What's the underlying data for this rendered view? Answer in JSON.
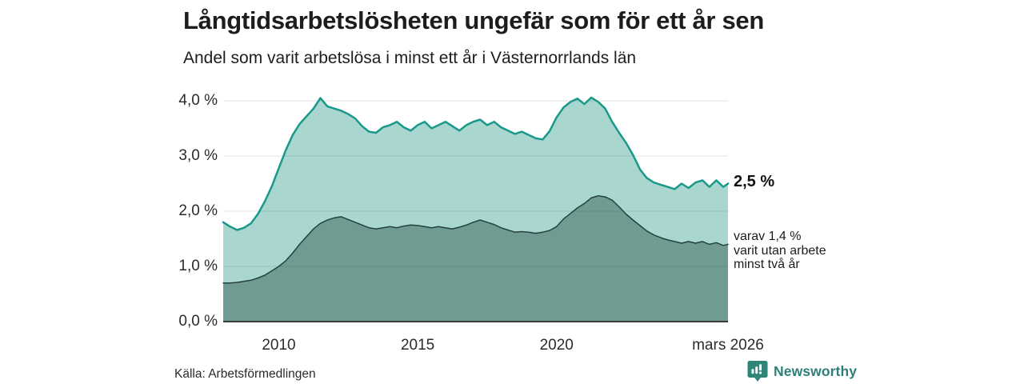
{
  "header": {
    "title": "Långtidsarbetslösheten ungefär som för ett år sen",
    "subtitle": "Andel som varit arbetslösa i minst ett år i Västernorrlands län"
  },
  "annotations": {
    "latest_total_label": "2,5 %",
    "subset_line1": "varav 1,4 %",
    "subset_line2": "varit utan arbete",
    "subset_line3": "minst två år"
  },
  "footer": {
    "source": "Källa: Arbetsförmedlingen",
    "brand": "Newsworthy",
    "brand_icon": "newsworthy-speech-bubble-barchart-icon",
    "brand_color": "#2e7f77"
  },
  "colors": {
    "background": "#ffffff",
    "title_text": "#1d1d1d",
    "tick_text": "#2b2b2b",
    "gridline": "#dcdcdc",
    "baseline": "#3b3b3b",
    "series1_line": "#19998a",
    "series1_fill": "#a9d6cf",
    "series2_line": "#24423d",
    "series2_fill": "#6f9b93"
  },
  "chart_data": {
    "type": "area",
    "title": "Långtidsarbetslösheten ungefär som för ett år sen",
    "subtitle": "Andel som varit arbetslösa i minst ett år i Västernorrlands län",
    "grid": true,
    "legend_position": "none",
    "xlim": [
      2008.0,
      2026.17
    ],
    "ylim": [
      0,
      4.35
    ],
    "y_ticks": [
      {
        "value": 4,
        "label": "4,0 %"
      },
      {
        "value": 3,
        "label": "3,0 %"
      },
      {
        "value": 2,
        "label": "2,0 %"
      },
      {
        "value": 1,
        "label": "1,0 %"
      },
      {
        "value": 0,
        "label": "0,0 %"
      }
    ],
    "x_ticks": [
      {
        "value": 2010,
        "label": "2010"
      },
      {
        "value": 2015,
        "label": "2015"
      },
      {
        "value": 2020,
        "label": "2020"
      },
      {
        "value": 2026.17,
        "label": "mars 2026"
      }
    ],
    "x": [
      2008.0,
      2008.25,
      2008.5,
      2008.75,
      2009.0,
      2009.25,
      2009.5,
      2009.75,
      2010.0,
      2010.25,
      2010.5,
      2010.75,
      2011.0,
      2011.25,
      2011.5,
      2011.75,
      2012.0,
      2012.25,
      2012.5,
      2012.75,
      2013.0,
      2013.25,
      2013.5,
      2013.75,
      2014.0,
      2014.25,
      2014.5,
      2014.75,
      2015.0,
      2015.25,
      2015.5,
      2015.75,
      2016.0,
      2016.25,
      2016.5,
      2016.75,
      2017.0,
      2017.25,
      2017.5,
      2017.75,
      2018.0,
      2018.25,
      2018.5,
      2018.75,
      2019.0,
      2019.25,
      2019.5,
      2019.75,
      2020.0,
      2020.25,
      2020.5,
      2020.75,
      2021.0,
      2021.25,
      2021.5,
      2021.75,
      2022.0,
      2022.25,
      2022.5,
      2022.75,
      2023.0,
      2023.25,
      2023.5,
      2023.75,
      2024.0,
      2024.25,
      2024.5,
      2024.75,
      2025.0,
      2025.25,
      2025.5,
      2025.75,
      2026.0,
      2026.17
    ],
    "series": [
      {
        "id": "unemployed_min_1_year",
        "line_color": "#19998a",
        "fill_color": "#a9d6cf",
        "line_width": 2.5,
        "values": [
          1.8,
          1.72,
          1.66,
          1.7,
          1.78,
          1.95,
          2.18,
          2.45,
          2.78,
          3.1,
          3.38,
          3.58,
          3.72,
          3.86,
          4.05,
          3.9,
          3.86,
          3.82,
          3.76,
          3.68,
          3.54,
          3.44,
          3.42,
          3.52,
          3.56,
          3.62,
          3.52,
          3.46,
          3.56,
          3.62,
          3.5,
          3.56,
          3.62,
          3.54,
          3.46,
          3.56,
          3.62,
          3.66,
          3.56,
          3.62,
          3.52,
          3.46,
          3.4,
          3.44,
          3.38,
          3.32,
          3.3,
          3.45,
          3.7,
          3.88,
          3.98,
          4.04,
          3.94,
          4.06,
          3.98,
          3.86,
          3.62,
          3.42,
          3.24,
          3.02,
          2.76,
          2.6,
          2.52,
          2.48,
          2.44,
          2.4,
          2.5,
          2.42,
          2.52,
          2.56,
          2.44,
          2.56,
          2.44,
          2.5
        ]
      },
      {
        "id": "unemployed_min_2_years",
        "line_color": "#24423d",
        "fill_color": "#6f9b93",
        "line_width": 1.5,
        "values": [
          0.7,
          0.7,
          0.71,
          0.73,
          0.75,
          0.79,
          0.84,
          0.92,
          1.0,
          1.1,
          1.24,
          1.4,
          1.54,
          1.68,
          1.78,
          1.84,
          1.88,
          1.9,
          1.85,
          1.8,
          1.75,
          1.7,
          1.68,
          1.7,
          1.72,
          1.7,
          1.73,
          1.75,
          1.74,
          1.72,
          1.7,
          1.72,
          1.7,
          1.68,
          1.71,
          1.75,
          1.8,
          1.84,
          1.8,
          1.76,
          1.7,
          1.66,
          1.62,
          1.63,
          1.62,
          1.6,
          1.62,
          1.65,
          1.72,
          1.86,
          1.96,
          2.06,
          2.14,
          2.24,
          2.28,
          2.26,
          2.2,
          2.08,
          1.95,
          1.84,
          1.74,
          1.64,
          1.57,
          1.52,
          1.48,
          1.45,
          1.42,
          1.45,
          1.42,
          1.45,
          1.4,
          1.43,
          1.38,
          1.4
        ]
      }
    ],
    "latest_values": {
      "min_1_year_pct": 2.5,
      "min_2_years_pct": 1.4
    }
  }
}
